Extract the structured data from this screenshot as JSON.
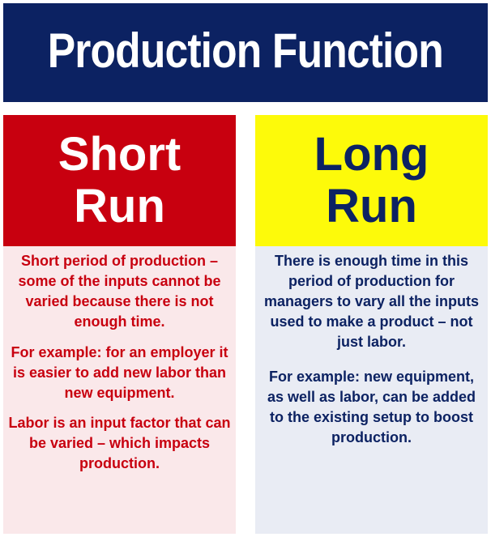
{
  "title": "Production Function",
  "short_run": {
    "heading_line1": "Short",
    "heading_line2": "Run",
    "paragraph1": "Short period of production – some of the inputs cannot be varied because there is not enough time.",
    "paragraph2": "For example: for an employer it is easier to add new labor than new equipment.",
    "paragraph3": "Labor is an input factor that can be varied – which impacts production."
  },
  "long_run": {
    "heading_line1": "Long",
    "heading_line2": "Run",
    "paragraph1": "There is enough time in this period of production for managers to vary all the inputs used to make a product – not just labor.",
    "paragraph2": "For example: new equipment, as well as labor, can be added to the existing setup to boost production."
  },
  "colors": {
    "title_background": "#0c2262",
    "short_run_header": "#c8000f",
    "short_run_body": "#fae8ea",
    "long_run_header": "#fdfa0a",
    "long_run_body": "#e9ecf4"
  }
}
